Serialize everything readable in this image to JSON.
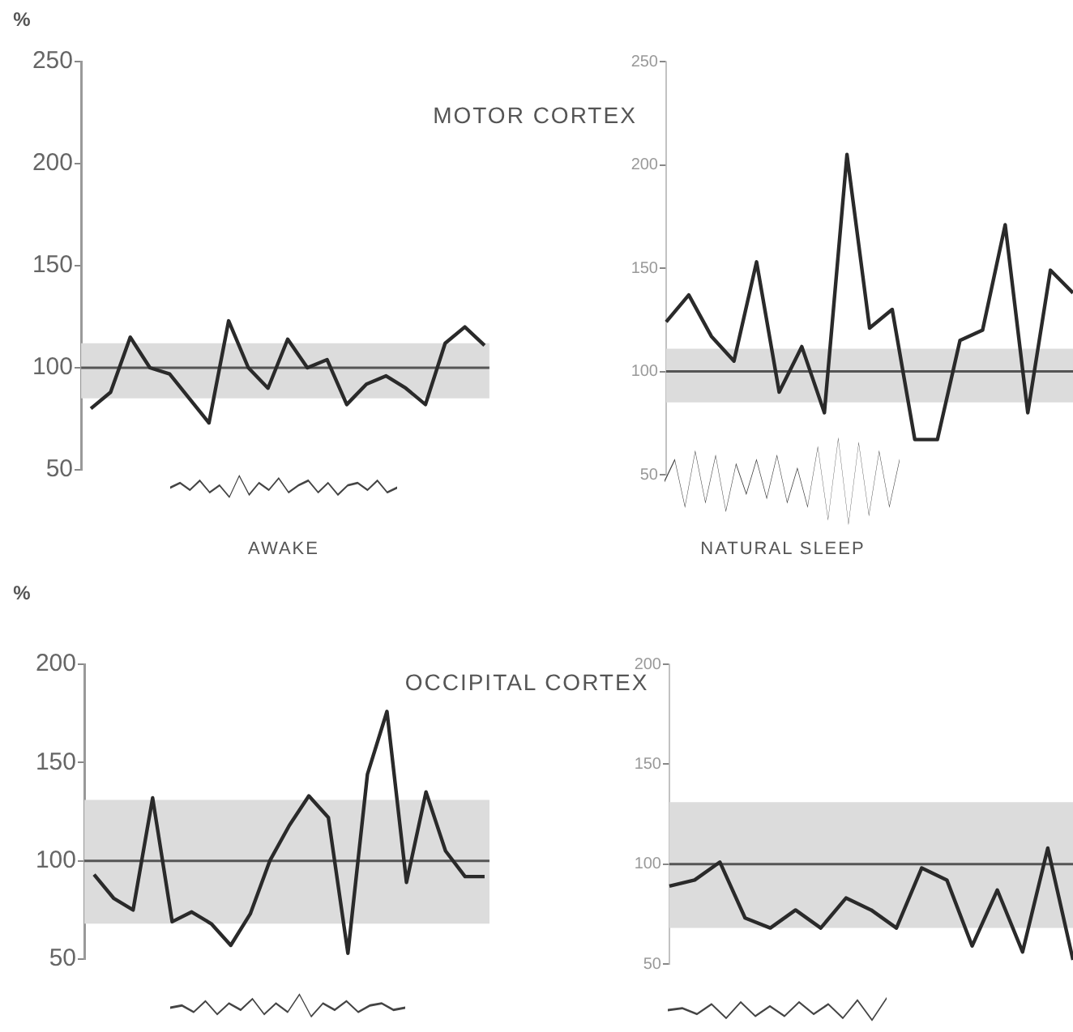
{
  "chart_data": [
    {
      "type": "line",
      "title": "MOTOR CORTEX",
      "ylabel": "%",
      "annotations": [
        "AWAKE"
      ],
      "categories": [
        null,
        null,
        null,
        null,
        null,
        null,
        null,
        null,
        null,
        null,
        null,
        null,
        null,
        null,
        null,
        null,
        null,
        null,
        null,
        null,
        null
      ],
      "values": [
        80,
        88,
        115,
        100,
        97,
        85,
        73,
        123,
        100,
        90,
        114,
        100,
        104,
        82,
        92,
        96,
        90,
        82,
        112,
        120,
        111
      ],
      "color": "#2a2a2a",
      "ylim": [
        50,
        250
      ],
      "yticks": [
        50,
        100,
        150,
        200,
        250
      ],
      "tick_labels": "y",
      "bands": [
        {
          "axis": "y",
          "from": 85,
          "to": 112,
          "color": "#dcdcdc"
        }
      ],
      "ref_lines": [
        {
          "axis": "y",
          "value": 100,
          "color": "#555555"
        }
      ]
    },
    {
      "type": "line",
      "annotations": [
        "NATURAL SLEEP"
      ],
      "categories": [
        null,
        null,
        null,
        null,
        null,
        null,
        null,
        null,
        null,
        null,
        null,
        null,
        null,
        null,
        null,
        null,
        null,
        null,
        null
      ],
      "values": [
        124,
        137,
        117,
        105,
        153,
        90,
        112,
        80,
        205,
        121,
        130,
        67,
        67,
        115,
        120,
        171,
        80,
        149,
        138
      ],
      "color": "#2a2a2a",
      "ylim": [
        50,
        250
      ],
      "yticks": [
        50,
        100,
        150,
        200,
        250
      ],
      "tick_labels": "y",
      "bands": [
        {
          "axis": "y",
          "from": 85,
          "to": 111,
          "color": "#dcdcdc"
        }
      ],
      "ref_lines": [
        {
          "axis": "y",
          "value": 100,
          "color": "#555555"
        }
      ]
    },
    {
      "type": "line",
      "title": "OCCIPITAL CORTEX",
      "ylabel": "%",
      "categories": [
        null,
        null,
        null,
        null,
        null,
        null,
        null,
        null,
        null,
        null,
        null,
        null,
        null,
        null,
        null,
        null,
        null,
        null,
        null,
        null,
        null
      ],
      "values": [
        93,
        81,
        75,
        132,
        69,
        74,
        68,
        57,
        73,
        100,
        118,
        133,
        122,
        53,
        144,
        176,
        89,
        135,
        105,
        92,
        92
      ],
      "color": "#2a2a2a",
      "ylim": [
        50,
        200
      ],
      "yticks": [
        50,
        100,
        150,
        200
      ],
      "tick_labels": "y",
      "bands": [
        {
          "axis": "y",
          "from": 68,
          "to": 131,
          "color": "#dcdcdc"
        }
      ],
      "ref_lines": [
        {
          "axis": "y",
          "value": 100,
          "color": "#555555"
        }
      ]
    },
    {
      "type": "line",
      "categories": [
        null,
        null,
        null,
        null,
        null,
        null,
        null,
        null,
        null,
        null,
        null,
        null,
        null,
        null,
        null,
        null,
        null
      ],
      "values": [
        89,
        92,
        101,
        73,
        68,
        77,
        68,
        83,
        77,
        68,
        98,
        92,
        59,
        87,
        56,
        108,
        52
      ],
      "color": "#2a2a2a",
      "ylim": [
        50,
        200
      ],
      "yticks": [
        50,
        100,
        150,
        200
      ],
      "tick_labels": "y",
      "bands": [
        {
          "axis": "y",
          "from": 68,
          "to": 131,
          "color": "#dcdcdc"
        }
      ],
      "ref_lines": [
        {
          "axis": "y",
          "value": 100,
          "color": "#555555"
        }
      ]
    }
  ]
}
